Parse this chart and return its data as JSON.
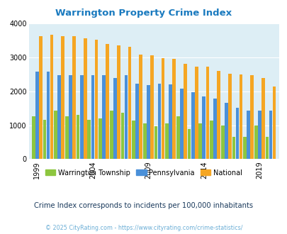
{
  "title": "Warrington Property Crime Index",
  "years": [
    1999,
    2000,
    2001,
    2002,
    2003,
    2004,
    2005,
    2006,
    2007,
    2008,
    2009,
    2010,
    2011,
    2012,
    2013,
    2014,
    2015,
    2016,
    2017,
    2018,
    2019,
    2020
  ],
  "warrington": [
    1260,
    1150,
    1420,
    1260,
    1310,
    1150,
    1200,
    1420,
    1360,
    1140,
    1050,
    980,
    1055,
    1260,
    880,
    1050,
    1140,
    1000,
    650,
    650,
    1000,
    660
  ],
  "pennsylvania": [
    2580,
    2580,
    2480,
    2470,
    2470,
    2480,
    2480,
    2400,
    2470,
    2230,
    2190,
    2230,
    2210,
    2080,
    1970,
    1840,
    1790,
    1660,
    1520,
    1430,
    1430,
    1420
  ],
  "national": [
    3620,
    3670,
    3630,
    3620,
    3560,
    3520,
    3400,
    3350,
    3300,
    3080,
    3050,
    2980,
    2960,
    2800,
    2720,
    2720,
    2590,
    2520,
    2500,
    2480,
    2400,
    2130
  ],
  "colors": {
    "warrington": "#8dc63f",
    "pennsylvania": "#4a90d9",
    "national": "#f5a623",
    "background": "#ddeef5",
    "title": "#1a7abf",
    "subtitle": "#1a3a5c",
    "footer": "#6baed6"
  },
  "ylim": [
    0,
    4000
  ],
  "yticks": [
    0,
    1000,
    2000,
    3000,
    4000
  ],
  "xlabel_ticks": [
    1999,
    2004,
    2009,
    2014,
    2019
  ],
  "legend_labels": [
    "Warrington Township",
    "Pennsylvania",
    "National"
  ],
  "subtitle": "Crime Index corresponds to incidents per 100,000 inhabitants",
  "footer": "© 2025 CityRating.com - https://www.cityrating.com/crime-statistics/"
}
